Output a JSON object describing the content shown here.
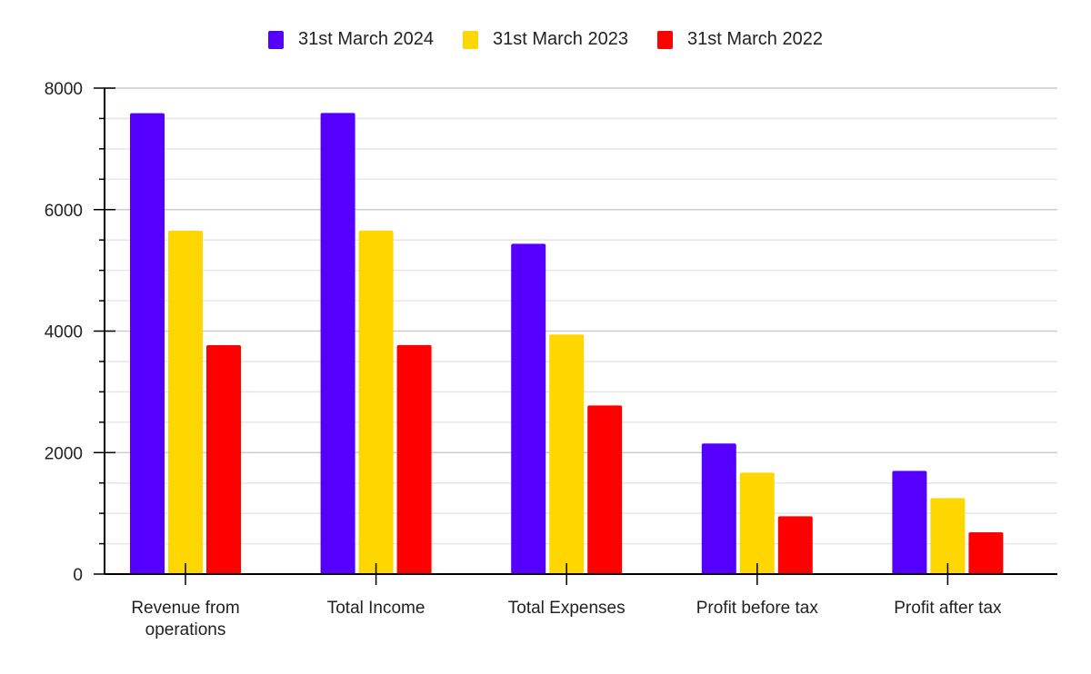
{
  "chart_data": {
    "type": "bar",
    "title": "",
    "xlabel": "",
    "ylabel": "",
    "categories": [
      "Revenue from operations",
      "Total Income",
      "Total Expenses",
      "Profit before tax",
      "Profit after tax"
    ],
    "category_lines": [
      [
        "Revenue from",
        "operations"
      ],
      [
        "Total Income"
      ],
      [
        "Total Expenses"
      ],
      [
        "Profit before tax"
      ],
      [
        "Profit after tax"
      ]
    ],
    "series": [
      {
        "name": "31st March 2024",
        "color": "#5500ff",
        "values": [
          7586,
          7590,
          5438,
          2149,
          1700
        ]
      },
      {
        "name": "31st March 2023",
        "color": "#ffd700",
        "values": [
          5652,
          5655,
          3943,
          1670,
          1251
        ]
      },
      {
        "name": "31st March 2022",
        "color": "#ff0000",
        "values": [
          3768,
          3770,
          2776,
          952,
          688
        ]
      }
    ],
    "ylim": [
      0,
      8000
    ],
    "yticks": [
      0,
      2000,
      4000,
      6000,
      8000
    ],
    "minor_gridlines_per_major": 3,
    "grid": true,
    "legend_position": "top"
  },
  "legend": {
    "items": [
      {
        "label": "31st March 2024",
        "color": "#5500ff"
      },
      {
        "label": "31st March 2023",
        "color": "#ffd700"
      },
      {
        "label": "31st March 2022",
        "color": "#ff0000"
      }
    ]
  }
}
